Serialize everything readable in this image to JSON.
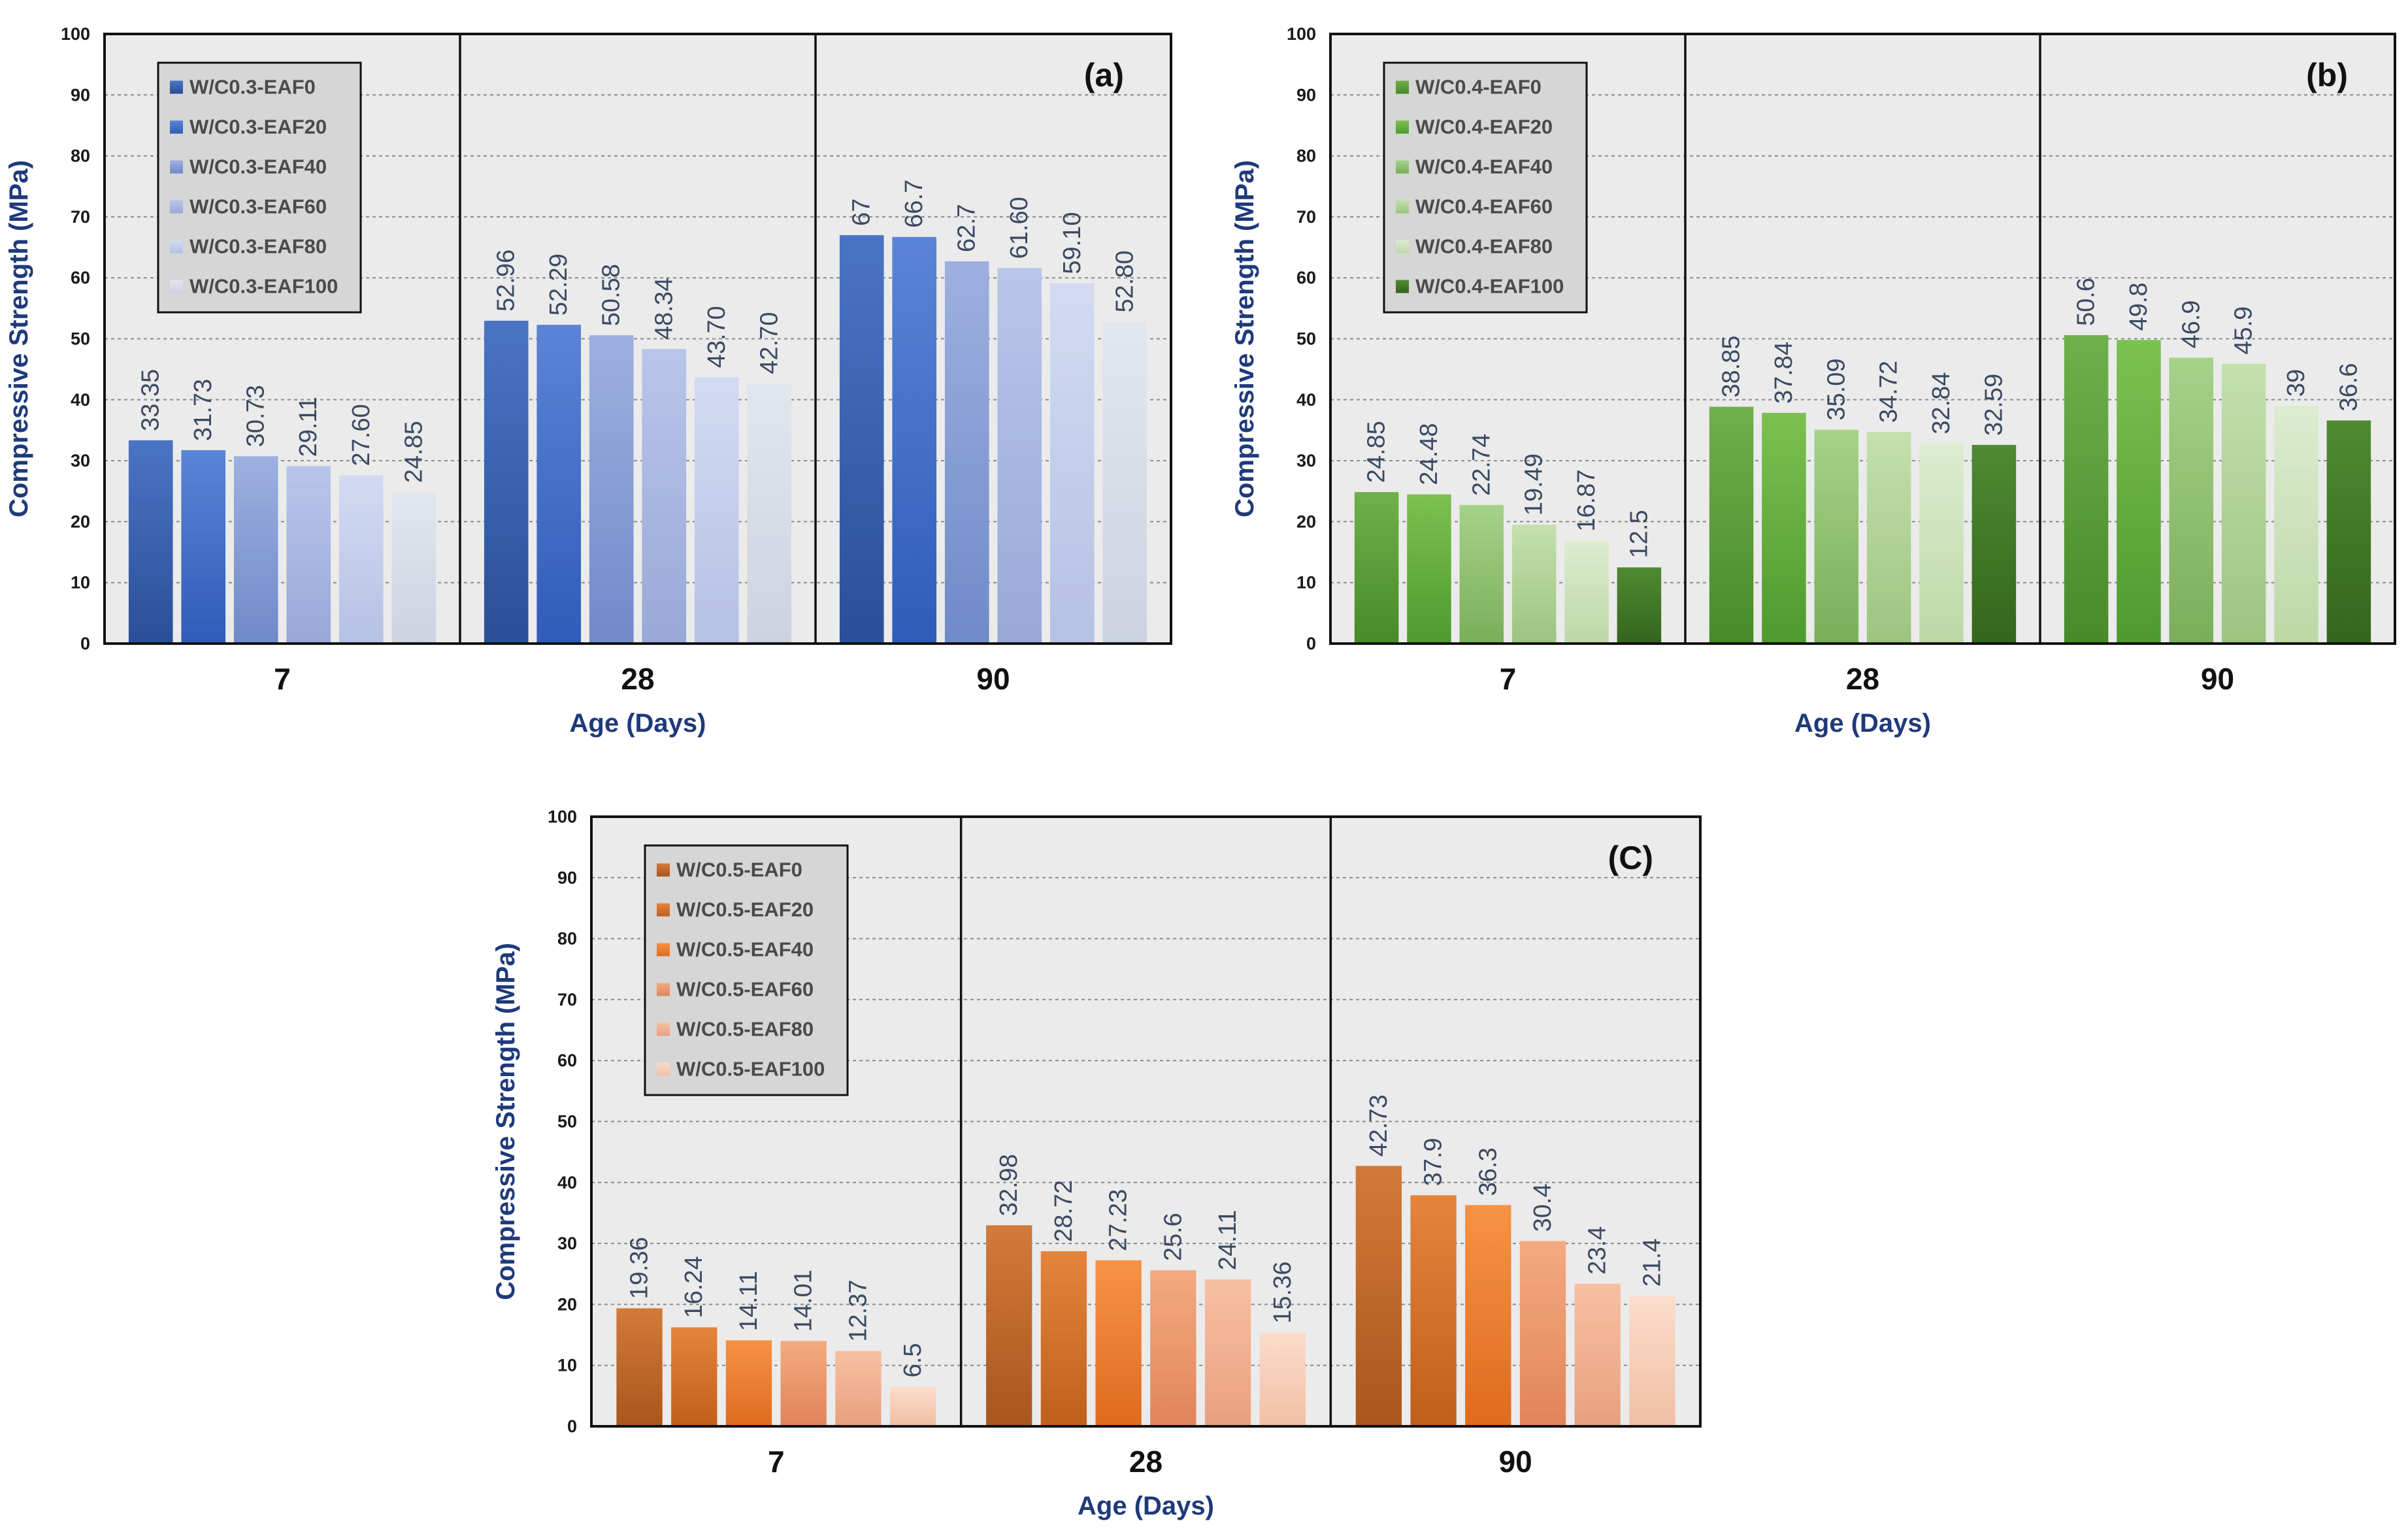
{
  "chart_data": [
    {
      "type": "bar",
      "panel_label": "(a)",
      "xlabel": "Age (Days)",
      "ylabel": "Compressive Strength (MPa)",
      "ylim": [
        0,
        100
      ],
      "yticks": [
        "0",
        "10",
        "20",
        "30",
        "40",
        "50",
        "60",
        "70",
        "80",
        "90",
        "100"
      ],
      "grid": true,
      "legend_position": "top-left",
      "categories": [
        "7",
        "28",
        "90"
      ],
      "series": [
        {
          "name": "W/C0.3-EAF0",
          "color_top": "#4a74c4",
          "color_bottom": "#2a4f98",
          "values": [
            33.35,
            52.96,
            67
          ],
          "labels": [
            "33.35",
            "52.96",
            "67"
          ]
        },
        {
          "name": "W/C0.3-EAF20",
          "color_top": "#5b84d6",
          "color_bottom": "#2f5cb8",
          "values": [
            31.73,
            52.29,
            66.7
          ],
          "labels": [
            "31.73",
            "52.29",
            "66.7"
          ]
        },
        {
          "name": "W/C0.3-EAF40",
          "color_top": "#9db0e0",
          "color_bottom": "#7089c8",
          "values": [
            30.73,
            50.58,
            62.7
          ],
          "labels": [
            "30.73",
            "50.58",
            "62.7"
          ]
        },
        {
          "name": "W/C0.3-EAF60",
          "color_top": "#b9c6ea",
          "color_bottom": "#98a8d8",
          "values": [
            29.11,
            48.34,
            61.6
          ],
          "labels": [
            "29.11",
            "48.34",
            "61.60"
          ]
        },
        {
          "name": "W/C0.3-EAF80",
          "color_top": "#d3dbf2",
          "color_bottom": "#b5c1e4",
          "values": [
            27.6,
            43.7,
            59.1
          ],
          "labels": [
            "27.60",
            "43.70",
            "59.10"
          ]
        },
        {
          "name": "W/C0.3-EAF100",
          "color_top": "#e2e6ee",
          "color_bottom": "#ccd3e0",
          "values": [
            24.85,
            42.7,
            52.8
          ],
          "labels": [
            "24.85",
            "42.70",
            "52.80"
          ]
        }
      ]
    },
    {
      "type": "bar",
      "panel_label": "(b)",
      "xlabel": "Age (Days)",
      "ylabel": "Compressive Strength (MPa)",
      "ylim": [
        0,
        100
      ],
      "yticks": [
        "0",
        "10",
        "20",
        "30",
        "40",
        "50",
        "60",
        "70",
        "80",
        "90",
        "100"
      ],
      "grid": true,
      "legend_position": "top-left",
      "categories": [
        "7",
        "28",
        "90"
      ],
      "series": [
        {
          "name": "W/C0.4-EAF0",
          "color_top": "#6fb04a",
          "color_bottom": "#468a2a",
          "values": [
            24.85,
            38.85,
            50.6
          ],
          "labels": [
            "24.85",
            "38.85",
            "50.6"
          ]
        },
        {
          "name": "W/C0.4-EAF20",
          "color_top": "#7cc150",
          "color_bottom": "#4e9a2e",
          "values": [
            24.48,
            37.84,
            49.8
          ],
          "labels": [
            "24.48",
            "37.84",
            "49.8"
          ]
        },
        {
          "name": "W/C0.4-EAF40",
          "color_top": "#a6d289",
          "color_bottom": "#7aae5a",
          "values": [
            22.74,
            35.09,
            46.9
          ],
          "labels": [
            "22.74",
            "35.09",
            "46.9"
          ]
        },
        {
          "name": "W/C0.4-EAF60",
          "color_top": "#c4e0ae",
          "color_bottom": "#9cc47f",
          "values": [
            19.49,
            34.72,
            45.9
          ],
          "labels": [
            "19.49",
            "34.72",
            "45.9"
          ]
        },
        {
          "name": "W/C0.4-EAF80",
          "color_top": "#dcecd0",
          "color_bottom": "#bcd8a6",
          "values": [
            16.87,
            32.84,
            39
          ],
          "labels": [
            "16.87",
            "32.84",
            "39"
          ]
        },
        {
          "name": "W/C0.4-EAF100",
          "color_top": "#4f8a32",
          "color_bottom": "#34651c",
          "values": [
            12.5,
            32.59,
            36.6
          ],
          "labels": [
            "12.5",
            "32.59",
            "36.6"
          ]
        }
      ]
    },
    {
      "type": "bar",
      "panel_label": "(C)",
      "xlabel": "Age (Days)",
      "ylabel": "Compressive Strength (MPa)",
      "ylim": [
        0,
        100
      ],
      "yticks": [
        "0",
        "10",
        "20",
        "30",
        "40",
        "50",
        "60",
        "70",
        "80",
        "90",
        "100"
      ],
      "grid": true,
      "legend_position": "top-left",
      "categories": [
        "7",
        "28",
        "90"
      ],
      "series": [
        {
          "name": "W/C0.5-EAF0",
          "color_top": "#d27a3a",
          "color_bottom": "#a9561c",
          "values": [
            19.36,
            32.98,
            42.73
          ],
          "labels": [
            "19.36",
            "32.98",
            "42.73"
          ]
        },
        {
          "name": "W/C0.5-EAF20",
          "color_top": "#e6843c",
          "color_bottom": "#bf5f1c",
          "values": [
            16.24,
            28.72,
            37.9
          ],
          "labels": [
            "16.24",
            "28.72",
            "37.9"
          ]
        },
        {
          "name": "W/C0.5-EAF40",
          "color_top": "#f79245",
          "color_bottom": "#de6b1e",
          "values": [
            14.11,
            27.23,
            36.3
          ],
          "labels": [
            "14.11",
            "27.23",
            "36.3"
          ]
        },
        {
          "name": "W/C0.5-EAF60",
          "color_top": "#f4aa80",
          "color_bottom": "#e0845a",
          "values": [
            14.01,
            25.6,
            30.4
          ],
          "labels": [
            "14.01",
            "25.6",
            "30.4"
          ]
        },
        {
          "name": "W/C0.5-EAF80",
          "color_top": "#f7c0a2",
          "color_bottom": "#e8a07e",
          "values": [
            12.37,
            24.11,
            23.4
          ],
          "labels": [
            "12.37",
            "24.11",
            "23.4"
          ]
        },
        {
          "name": "W/C0.5-EAF100",
          "color_top": "#fbdccb",
          "color_bottom": "#f1bfa5",
          "values": [
            6.5,
            15.36,
            21.4
          ],
          "labels": [
            "6.5",
            "15.36",
            "21.4"
          ]
        }
      ]
    }
  ]
}
